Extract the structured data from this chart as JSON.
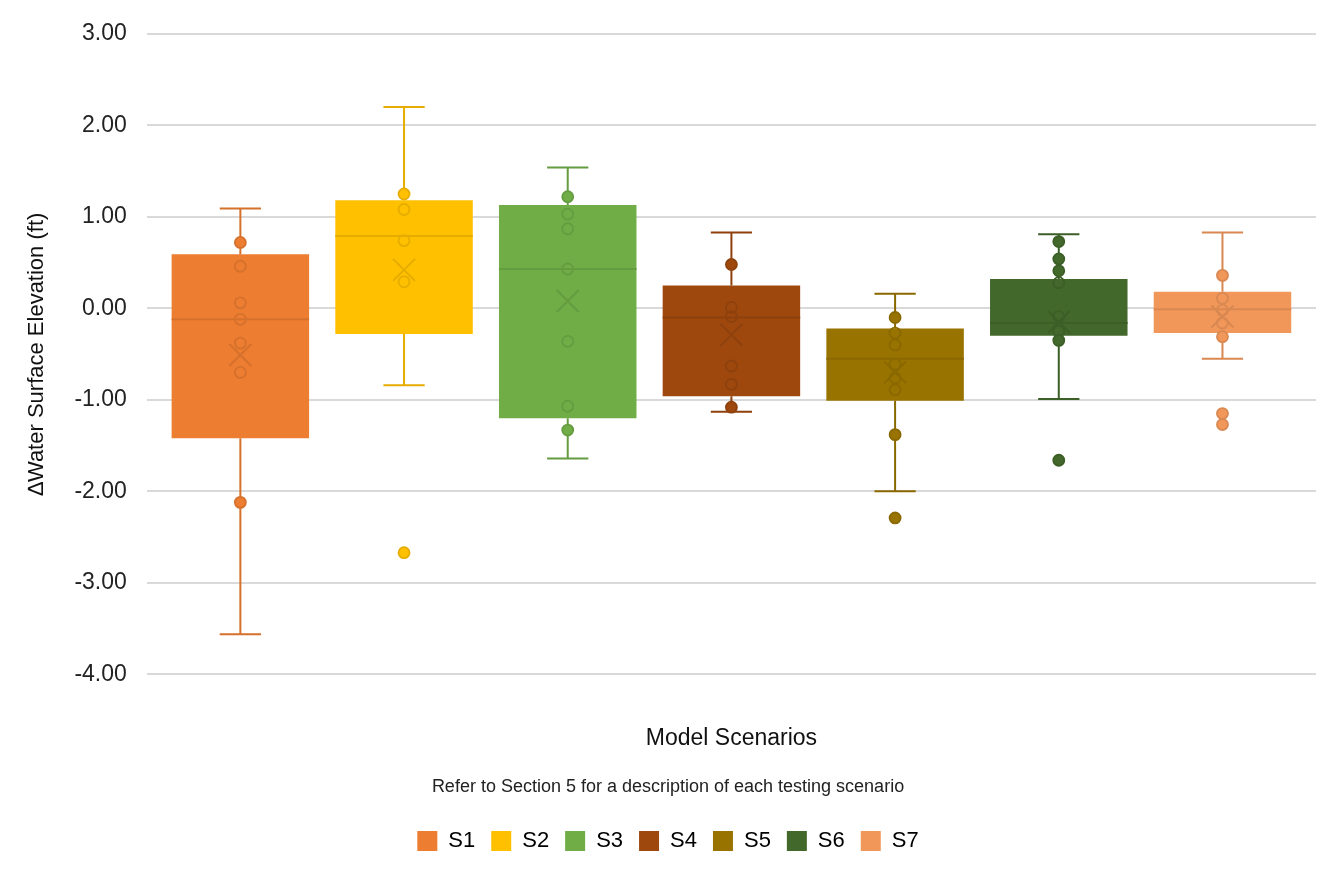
{
  "chart_data": {
    "type": "box",
    "xlabel": "Model Scenarios",
    "ylabel": "∆Water Surface Elevation (ft)",
    "annotations": [
      "Refer to Section 5 for a description of each testing scenario"
    ],
    "categories": [
      null
    ],
    "ylim": [
      -4,
      3
    ],
    "yticks": [
      {
        "value": -4,
        "label": "-4.00"
      },
      {
        "value": -3,
        "label": "-3.00"
      },
      {
        "value": -2,
        "label": "-2.00"
      },
      {
        "value": -1,
        "label": "-1.00"
      },
      {
        "value": 0,
        "label": "0.00"
      },
      {
        "value": 1,
        "label": "1.00"
      },
      {
        "value": 2,
        "label": "2.00"
      },
      {
        "value": 3,
        "label": "3.00"
      }
    ],
    "grid": "y",
    "legend": "bottom",
    "marker": "circle",
    "series": [
      {
        "name": "S1",
        "color": "#ed7d31",
        "boxes": [
          {
            "low": -3.56,
            "q1": -1.42,
            "median": -0.12,
            "q3": 0.59,
            "high": 1.09,
            "mean": -0.51,
            "outliers": [
              0.72,
              0.46,
              0.06,
              -0.12,
              -0.38,
              -0.7,
              -2.12
            ]
          }
        ]
      },
      {
        "name": "S2",
        "color": "#ffc000",
        "boxes": [
          {
            "low": -0.84,
            "q1": -0.28,
            "median": 0.79,
            "q3": 1.18,
            "high": 2.2,
            "mean": 0.42,
            "outliers": [
              1.25,
              1.08,
              0.74,
              0.29,
              -2.67
            ]
          }
        ]
      },
      {
        "name": "S3",
        "color": "#70ad47",
        "boxes": [
          {
            "low": -1.64,
            "q1": -1.2,
            "median": 0.43,
            "q3": 1.13,
            "high": 1.54,
            "mean": 0.08,
            "outliers": [
              1.22,
              1.03,
              0.87,
              0.43,
              -0.36,
              -1.07,
              -1.33
            ]
          }
        ]
      },
      {
        "name": "S4",
        "color": "#9e480e",
        "boxes": [
          {
            "low": -1.13,
            "q1": -0.96,
            "median": -0.1,
            "q3": 0.25,
            "high": 0.83,
            "mean": -0.29,
            "outliers": [
              0.48,
              0.01,
              -0.09,
              -0.63,
              -0.83,
              -1.08
            ]
          }
        ]
      },
      {
        "name": "S5",
        "color": "#997300",
        "boxes": [
          {
            "low": -2.0,
            "q1": -1.01,
            "median": -0.55,
            "q3": -0.22,
            "high": 0.16,
            "mean": -0.7,
            "outliers": [
              -0.1,
              -0.27,
              -0.4,
              -0.61,
              -0.76,
              -0.89,
              -1.38,
              -2.29
            ]
          }
        ]
      },
      {
        "name": "S6",
        "color": "#43682b",
        "boxes": [
          {
            "low": -0.99,
            "q1": -0.3,
            "median": -0.16,
            "q3": 0.32,
            "high": 0.81,
            "mean": -0.15,
            "outliers": [
              0.73,
              0.54,
              0.41,
              0.28,
              -0.09,
              -0.25,
              -0.35,
              -1.66
            ]
          }
        ]
      },
      {
        "name": "S7",
        "color": "#f1975a",
        "boxes": [
          {
            "low": -0.55,
            "q1": -0.27,
            "median": -0.01,
            "q3": 0.18,
            "high": 0.83,
            "mean": -0.09,
            "outliers": [
              0.36,
              0.11,
              -0.02,
              -0.16,
              -0.31,
              -1.15,
              -1.27
            ]
          }
        ]
      }
    ]
  }
}
